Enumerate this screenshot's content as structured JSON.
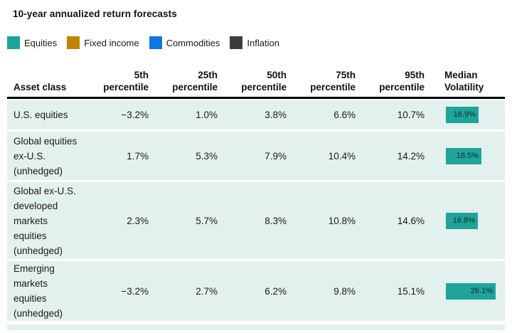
{
  "colors": {
    "accent_teal": "#1fa49a",
    "row_background": "#e3f1ee",
    "bar_text": "#0d2c28",
    "header_rule": "#000000"
  },
  "chart_data": {
    "type": "table",
    "title": "10-year annualized return forecasts",
    "legend": [
      {
        "label": "Equities",
        "color": "#1fa49a",
        "icon": "equities-swatch"
      },
      {
        "label": "Fixed income",
        "color": "#bf8400",
        "icon": "fixed-income-swatch"
      },
      {
        "label": "Commodities",
        "color": "#0d76e0",
        "icon": "commodities-swatch"
      },
      {
        "label": "Inflation",
        "color": "#3c3c3c",
        "icon": "inflation-swatch"
      }
    ],
    "columns": [
      "Asset class",
      "5th\npercentile",
      "25th\npercentile",
      "50th\npercentile",
      "75th\npercentile",
      "95th\npercentile",
      "Median\nVolatility"
    ],
    "rows": [
      {
        "asset": "U.S. equities",
        "values": [
          "−3.2%",
          "1.0%",
          "3.8%",
          "6.6%",
          "10.7%"
        ],
        "median_volatility": 16.9,
        "median_volatility_label": "16.9%",
        "bar_color": "#1fa49a"
      },
      {
        "asset": "Global equities\nex-U.S.\n(unhedged)",
        "values": [
          "1.7%",
          "5.3%",
          "7.9%",
          "10.4%",
          "14.2%"
        ],
        "median_volatility": 18.5,
        "median_volatility_label": "18.5%",
        "bar_color": "#1fa49a"
      },
      {
        "asset": "Global ex-U.S.\ndeveloped\nmarkets\nequities\n(unhedged)",
        "values": [
          "2.3%",
          "5.7%",
          "8.3%",
          "10.8%",
          "14.6%"
        ],
        "median_volatility": 16.8,
        "median_volatility_label": "16.8%",
        "bar_color": "#1fa49a"
      },
      {
        "asset": "Emerging\nmarkets\nequities\n(unhedged)",
        "values": [
          "−3.2%",
          "2.7%",
          "6.2%",
          "9.8%",
          "15.1%"
        ],
        "median_volatility": 26.1,
        "median_volatility_label": "26.1%",
        "bar_color": "#1fa49a"
      }
    ]
  }
}
